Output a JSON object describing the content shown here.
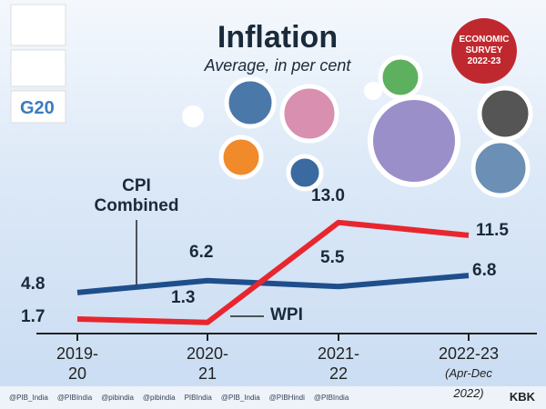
{
  "chart_data": {
    "type": "line",
    "title": "Inflation",
    "subtitle": "Average, in per cent",
    "categories": [
      "2019-20",
      "2020-21",
      "2021-22",
      "2022-23"
    ],
    "category_note": "(Apr-Dec 2022)",
    "series": [
      {
        "name": "CPI Combined",
        "color": "#1f4e8c",
        "values": [
          4.8,
          6.2,
          5.5,
          6.8
        ]
      },
      {
        "name": "WPI",
        "color": "#e8262f",
        "values": [
          1.7,
          1.3,
          13.0,
          11.5
        ],
        "value_labels": [
          "1.7",
          "1.3",
          "13.0",
          "11.5"
        ]
      }
    ]
  },
  "badge": "ECONOMIC\nSURVEY\n2022-23",
  "g20": "G20",
  "credit": "KBK",
  "footer": [
    "@PIB_India",
    "@PIBIndia",
    "@pibindia",
    "@pibindia",
    "PIBIndia",
    "@PIB_India",
    "@PIBHindi",
    "@PIBIndia"
  ]
}
